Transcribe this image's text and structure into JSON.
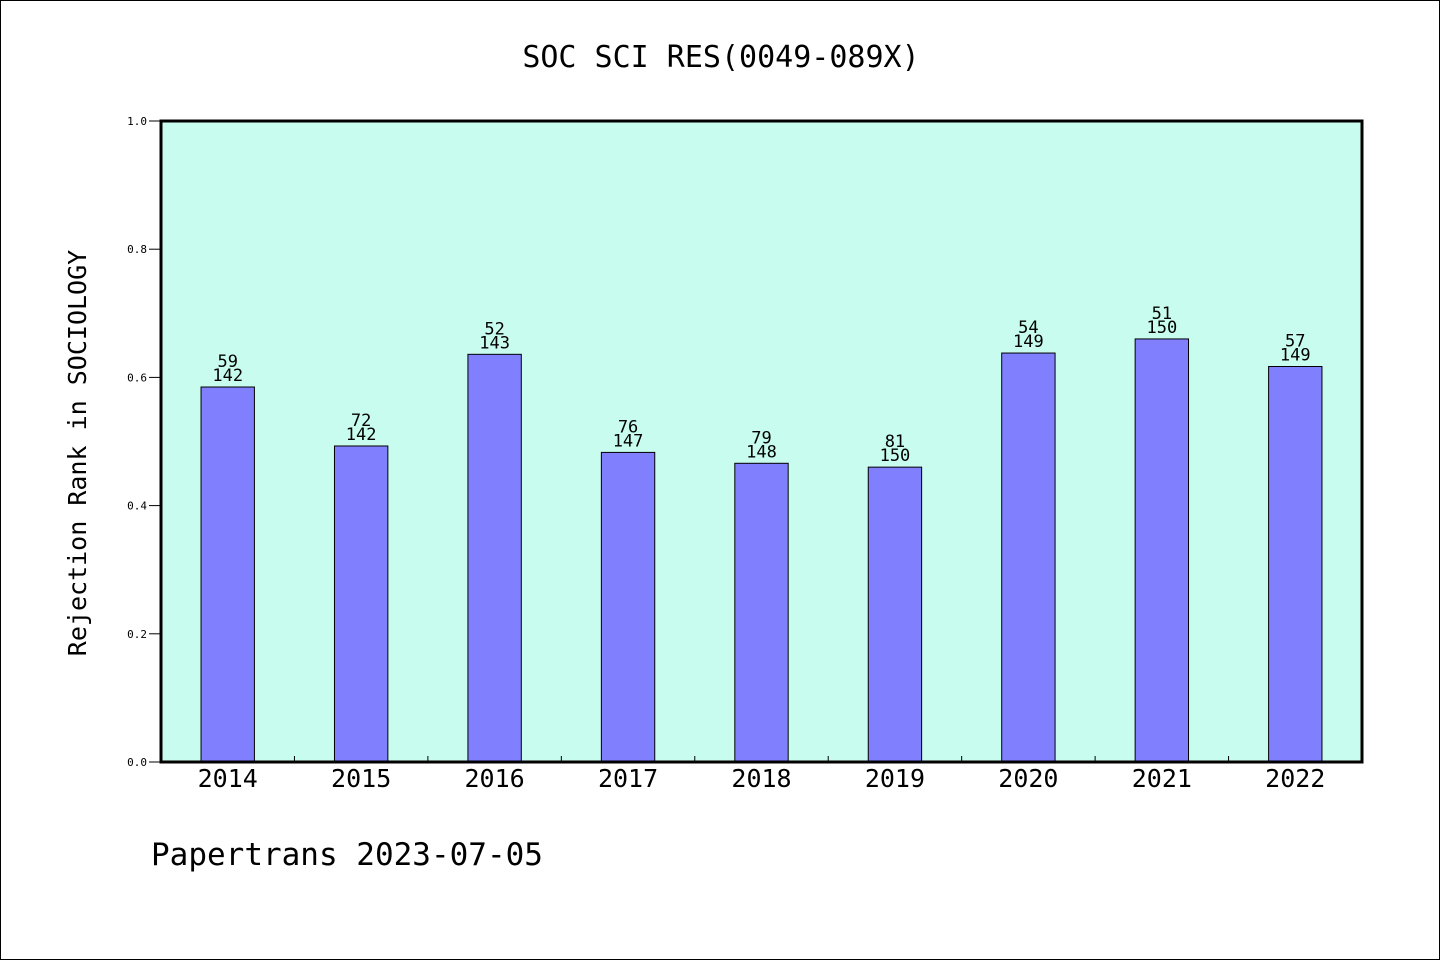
{
  "chart_data": {
    "type": "bar",
    "title": "SOC SCI RES(0049-089X)",
    "xlabel": "",
    "ylabel": "Rejection Rank in SOCIOLOGY",
    "categories": [
      "2014",
      "2015",
      "2016",
      "2017",
      "2018",
      "2019",
      "2020",
      "2021",
      "2022"
    ],
    "values": [
      0.585,
      0.493,
      0.636,
      0.483,
      0.466,
      0.46,
      0.638,
      0.66,
      0.617
    ],
    "labels_rank": [
      "59",
      "72",
      "52",
      "76",
      "79",
      "81",
      "54",
      "51",
      "57"
    ],
    "labels_total": [
      "142",
      "142",
      "143",
      "147",
      "148",
      "150",
      "149",
      "150",
      "149"
    ],
    "ylim": [
      0,
      1.0
    ],
    "yticks": [
      "0.0",
      "0.2",
      "0.4",
      "0.6",
      "0.8",
      "1.0"
    ],
    "grid": false,
    "colors": {
      "bar": "#8080ff",
      "plot_background": "#c8fcee",
      "bar_edge": "#000000"
    }
  },
  "footer": {
    "text": "Papertrans 2023-07-05"
  }
}
